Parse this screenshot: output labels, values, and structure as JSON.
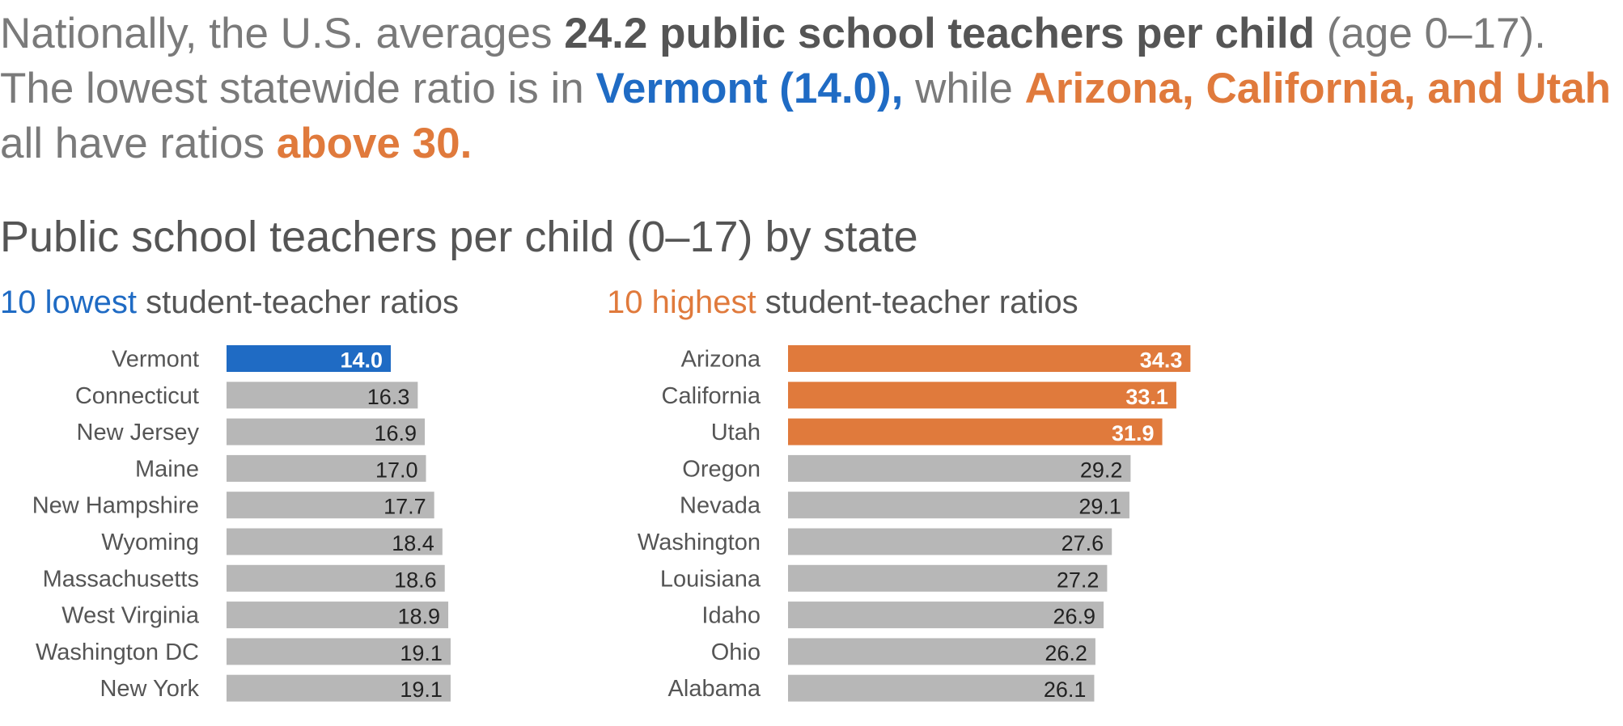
{
  "headline": {
    "s1": "Nationally, the U.S. averages ",
    "s2": "24.2 public school teachers per child",
    "s3": " (age 0–17). The lowest statewide ratio is in ",
    "s4": "Vermont (14.0),",
    "s5": " while ",
    "s6": "Arizona, California, and Utah",
    "s7": " all have ratios ",
    "s8": "above 30."
  },
  "chart_title": "Public school teachers per child (0–17) by state",
  "left_subtitle": {
    "highlight": "10 lowest",
    "rest": " student-teacher ratios"
  },
  "right_subtitle": {
    "highlight": "10 highest",
    "rest": " student-teacher ratios"
  },
  "colors": {
    "blue": "#1f6bc4",
    "orange": "#e07a3c",
    "gray": "#b7b7b7"
  },
  "chart_data": [
    {
      "type": "bar",
      "orientation": "horizontal",
      "categories": [
        "Vermont",
        "Connecticut",
        "New Jersey",
        "Maine",
        "New Hampshire",
        "Wyoming",
        "Massachusetts",
        "West Virginia",
        "Washington DC",
        "New York"
      ],
      "values": [
        14.0,
        16.3,
        16.9,
        17.0,
        17.7,
        18.4,
        18.6,
        18.9,
        19.1,
        19.1
      ],
      "labels": [
        "14.0",
        "16.3",
        "16.9",
        "17.0",
        "17.7",
        "18.4",
        "18.6",
        "18.9",
        "19.1",
        "19.1"
      ],
      "highlight_count": 1,
      "highlight_color": "#1f6bc4",
      "base_color": "#b7b7b7"
    },
    {
      "type": "bar",
      "orientation": "horizontal",
      "categories": [
        "Arizona",
        "California",
        "Utah",
        "Oregon",
        "Nevada",
        "Washington",
        "Louisiana",
        "Idaho",
        "Ohio",
        "Alabama"
      ],
      "values": [
        34.3,
        33.1,
        31.9,
        29.2,
        29.1,
        27.6,
        27.2,
        26.9,
        26.2,
        26.1
      ],
      "labels": [
        "34.3",
        "33.1",
        "31.9",
        "29.2",
        "29.1",
        "27.6",
        "27.2",
        "26.9",
        "26.2",
        "26.1"
      ],
      "highlight_count": 3,
      "highlight_color": "#e07a3c",
      "base_color": "#b7b7b7"
    }
  ]
}
